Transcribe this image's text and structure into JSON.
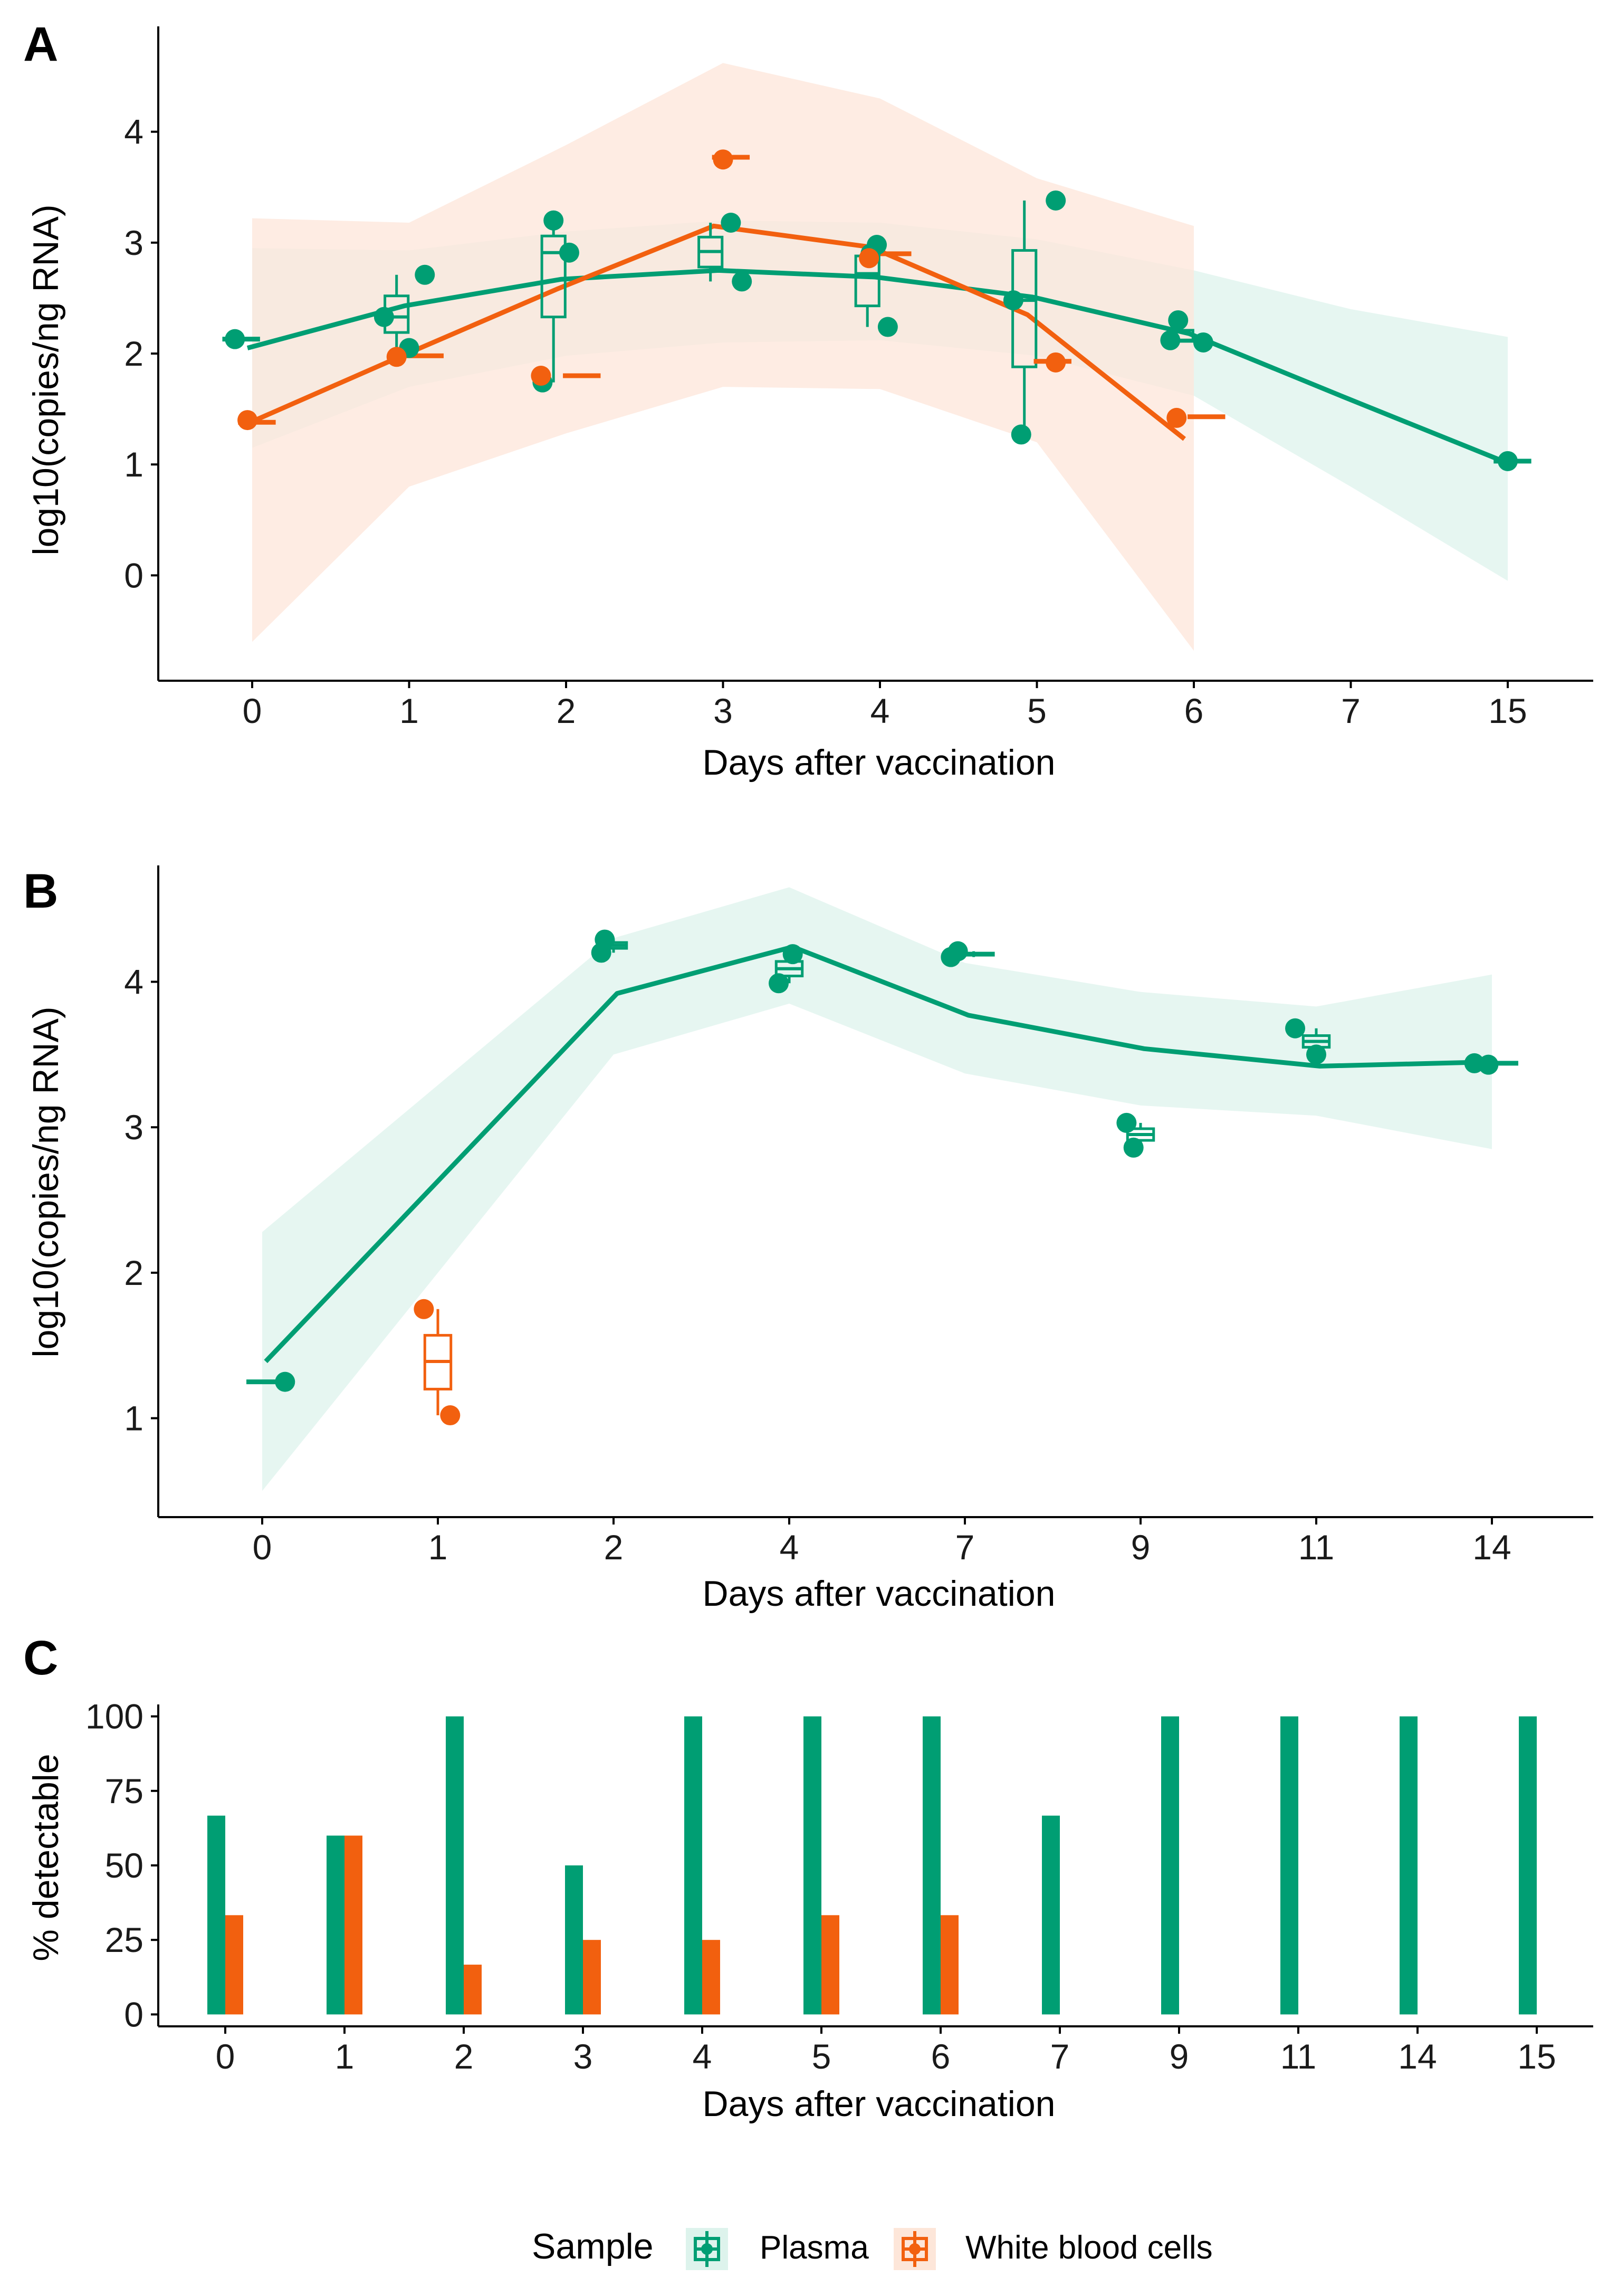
{
  "colors": {
    "plasma": "#009E73",
    "wbc": "#F2600F",
    "plasma_band": "#DDF3EC",
    "wbc_band": "#FDE6D9",
    "axis": "#000000"
  },
  "legend": {
    "title": "Sample",
    "items": [
      {
        "label": "Plasma",
        "key": "plasma"
      },
      {
        "label": "White blood cells",
        "key": "wbc"
      }
    ]
  },
  "chart_data": [
    {
      "panel": "A",
      "type": "line",
      "xlabel": "Days after vaccination",
      "ylabel": "log10(copies/ng RNA)",
      "ylim": [
        -0.95,
        4.95
      ],
      "yticks": [
        0,
        1,
        2,
        3,
        4
      ],
      "categories": [
        "0",
        "1",
        "2",
        "3",
        "4",
        "5",
        "6",
        "7",
        "15"
      ],
      "series": [
        {
          "name": "Plasma",
          "key": "plasma",
          "line": [
            2.05,
            2.43,
            2.67,
            2.75,
            2.69,
            2.51,
            2.18,
            1.6,
            1.03
          ],
          "band_low": [
            1.15,
            1.7,
            1.98,
            2.1,
            2.12,
            1.98,
            1.62,
            0.8,
            -0.05
          ],
          "band_high": [
            2.95,
            2.93,
            3.1,
            3.2,
            3.18,
            3.03,
            2.75,
            2.4,
            2.15
          ],
          "line_x_offset": -0.03,
          "band_x_offset": 0,
          "points": [
            {
              "x": 0,
              "dx": -0.11,
              "y": 2.13
            },
            {
              "x": 1,
              "dx": -0.16,
              "y": 2.33
            },
            {
              "x": 1,
              "dx": 0.0,
              "y": 2.05
            },
            {
              "x": 1,
              "dx": 0.1,
              "y": 2.71
            },
            {
              "x": 2,
              "dx": -0.15,
              "y": 1.74
            },
            {
              "x": 2,
              "dx": -0.08,
              "y": 3.2
            },
            {
              "x": 2,
              "dx": 0.02,
              "y": 2.91
            },
            {
              "x": 3,
              "dx": 0.05,
              "y": 3.18
            },
            {
              "x": 3,
              "dx": 0.12,
              "y": 2.65
            },
            {
              "x": 4,
              "dx": -0.02,
              "y": 2.98
            },
            {
              "x": 4,
              "dx": -0.06,
              "y": 2.9
            },
            {
              "x": 4,
              "dx": 0.05,
              "y": 2.24
            },
            {
              "x": 5,
              "dx": -0.15,
              "y": 2.48
            },
            {
              "x": 5,
              "dx": -0.1,
              "y": 1.27
            },
            {
              "x": 5,
              "dx": 0.12,
              "y": 3.38
            },
            {
              "x": 6,
              "dx": -0.15,
              "y": 2.12
            },
            {
              "x": 6,
              "dx": -0.1,
              "y": 2.3
            },
            {
              "x": 6,
              "dx": 0.06,
              "y": 2.1
            },
            {
              "x": 15,
              "dx": 0.0,
              "y": 1.03
            }
          ],
          "boxes": [
            {
              "x": 0,
              "offset": -0.07,
              "q1": 2.13,
              "median": 2.13,
              "q3": 2.13,
              "lo": 2.13,
              "hi": 2.13
            },
            {
              "x": 1,
              "offset": -0.08,
              "q1": 2.19,
              "median": 2.33,
              "q3": 2.52,
              "lo": 2.05,
              "hi": 2.71
            },
            {
              "x": 2,
              "offset": -0.08,
              "q1": 2.33,
              "median": 2.91,
              "q3": 3.06,
              "lo": 1.74,
              "hi": 3.2
            },
            {
              "x": 3,
              "offset": -0.08,
              "q1": 2.78,
              "median": 2.92,
              "q3": 3.05,
              "lo": 2.65,
              "hi": 3.18
            },
            {
              "x": 4,
              "offset": -0.08,
              "q1": 2.43,
              "median": 2.72,
              "q3": 2.88,
              "lo": 2.24,
              "hi": 2.98
            },
            {
              "x": 5,
              "offset": -0.08,
              "q1": 1.88,
              "median": 2.48,
              "q3": 2.93,
              "lo": 1.27,
              "hi": 3.38
            },
            {
              "x": 6,
              "offset": -0.08,
              "q1": 2.11,
              "median": 2.12,
              "q3": 2.21,
              "lo": 2.1,
              "hi": 2.3
            },
            {
              "x": 15,
              "offset": 0.03,
              "q1": 1.03,
              "median": 1.03,
              "q3": 1.03,
              "lo": 1.03,
              "hi": 1.03
            }
          ]
        },
        {
          "name": "White blood cells",
          "key": "wbc",
          "line": [
            1.35,
            1.97,
            2.58,
            3.15,
            2.96,
            2.35,
            1.23
          ],
          "band_low": [
            -0.6,
            0.8,
            1.28,
            1.7,
            1.68,
            1.2,
            -0.68
          ],
          "band_high": [
            3.22,
            3.18,
            3.88,
            4.62,
            4.3,
            3.58,
            3.15
          ],
          "line_x_offset": -0.06,
          "band_x_offset": 0,
          "points": [
            {
              "x": 0,
              "dx": -0.03,
              "y": 1.4
            },
            {
              "x": 1,
              "dx": -0.08,
              "y": 1.97
            },
            {
              "x": 2,
              "dx": -0.16,
              "y": 1.8
            },
            {
              "x": 3,
              "dx": 0.0,
              "y": 3.75
            },
            {
              "x": 4,
              "dx": -0.07,
              "y": 2.86
            },
            {
              "x": 5,
              "dx": 0.12,
              "y": 1.92
            },
            {
              "x": 6,
              "dx": -0.11,
              "y": 1.42
            }
          ],
          "boxes": [
            {
              "x": 0,
              "offset": 0.03,
              "q1": 1.38,
              "median": 1.38,
              "q3": 1.38,
              "lo": 1.38,
              "hi": 1.38
            },
            {
              "x": 1,
              "offset": 0.1,
              "q1": 1.98,
              "median": 1.98,
              "q3": 1.98,
              "lo": 1.98,
              "hi": 1.98
            },
            {
              "x": 2,
              "offset": 0.1,
              "q1": 1.8,
              "median": 1.8,
              "q3": 1.8,
              "lo": 1.8,
              "hi": 1.8
            },
            {
              "x": 3,
              "offset": 0.05,
              "q1": 3.77,
              "median": 3.77,
              "q3": 3.77,
              "lo": 3.77,
              "hi": 3.77
            },
            {
              "x": 4,
              "offset": 0.08,
              "q1": 2.9,
              "median": 2.9,
              "q3": 2.9,
              "lo": 2.9,
              "hi": 2.9
            },
            {
              "x": 5,
              "offset": 0.1,
              "q1": 1.93,
              "median": 1.93,
              "q3": 1.93,
              "lo": 1.93,
              "hi": 1.93
            },
            {
              "x": 6,
              "offset": 0.08,
              "q1": 1.43,
              "median": 1.43,
              "q3": 1.43,
              "lo": 1.43,
              "hi": 1.43
            }
          ]
        }
      ]
    },
    {
      "panel": "B",
      "type": "line",
      "xlabel": "Days after vaccination",
      "ylabel": "log10(copies/ng RNA)",
      "ylim": [
        0.32,
        4.8
      ],
      "yticks": [
        1,
        2,
        3,
        4
      ],
      "categories": [
        "0",
        "1",
        "2",
        "4",
        "7",
        "9",
        "11",
        "14"
      ],
      "series": [
        {
          "name": "Plasma",
          "key": "plasma",
          "line": [
            1.39,
            null,
            3.92,
            4.24,
            3.77,
            3.54,
            3.42,
            3.45
          ],
          "band_low": [
            0.5,
            null,
            3.5,
            3.85,
            3.37,
            3.15,
            3.08,
            2.85
          ],
          "band_high": [
            2.28,
            null,
            4.3,
            4.65,
            4.13,
            3.93,
            3.83,
            4.05
          ],
          "line_x_offset": 0.02,
          "band_x_offset": 0,
          "points": [
            {
              "x": 0,
              "dx": 0.13,
              "y": 1.25
            },
            {
              "x": 2,
              "dx": -0.07,
              "y": 4.2
            },
            {
              "x": 2,
              "dx": -0.05,
              "y": 4.29
            },
            {
              "x": 4,
              "dx": -0.06,
              "y": 3.99
            },
            {
              "x": 4,
              "dx": 0.02,
              "y": 4.19
            },
            {
              "x": 7,
              "dx": -0.08,
              "y": 4.17
            },
            {
              "x": 7,
              "dx": -0.04,
              "y": 4.21
            },
            {
              "x": 9,
              "dx": -0.08,
              "y": 3.03
            },
            {
              "x": 9,
              "dx": -0.04,
              "y": 2.86
            },
            {
              "x": 11,
              "dx": -0.12,
              "y": 3.68
            },
            {
              "x": 11,
              "dx": 0.0,
              "y": 3.5
            },
            {
              "x": 14,
              "dx": -0.1,
              "y": 3.44
            },
            {
              "x": 14,
              "dx": -0.02,
              "y": 3.43
            }
          ],
          "boxes": [
            {
              "x": 0,
              "offset": 0.03,
              "q1": 1.25,
              "median": 1.25,
              "q3": 1.25,
              "lo": 1.25,
              "hi": 1.25
            },
            {
              "x": 2,
              "offset": 0.0,
              "q1": 4.23,
              "median": 4.25,
              "q3": 4.27,
              "lo": 4.2,
              "hi": 4.29
            },
            {
              "x": 4,
              "offset": 0.0,
              "q1": 4.04,
              "median": 4.09,
              "q3": 4.14,
              "lo": 3.99,
              "hi": 4.19
            },
            {
              "x": 7,
              "offset": 0.05,
              "q1": 4.19,
              "median": 4.19,
              "q3": 4.19,
              "lo": 4.17,
              "hi": 4.21
            },
            {
              "x": 9,
              "offset": 0.0,
              "q1": 2.91,
              "median": 2.95,
              "q3": 2.99,
              "lo": 2.86,
              "hi": 3.03
            },
            {
              "x": 11,
              "offset": 0.0,
              "q1": 3.55,
              "median": 3.59,
              "q3": 3.63,
              "lo": 3.5,
              "hi": 3.68
            },
            {
              "x": 14,
              "offset": 0.03,
              "q1": 3.44,
              "median": 3.44,
              "q3": 3.44,
              "lo": 3.43,
              "hi": 3.45
            }
          ]
        },
        {
          "name": "White blood cells",
          "key": "wbc",
          "line": [],
          "band_low": [],
          "band_high": [],
          "points": [
            {
              "x": 1,
              "dx": -0.08,
              "y": 1.75
            },
            {
              "x": 1,
              "dx": 0.07,
              "y": 1.02
            }
          ],
          "boxes": [
            {
              "x": 1,
              "offset": 0.0,
              "q1": 1.2,
              "median": 1.39,
              "q3": 1.57,
              "lo": 1.02,
              "hi": 1.75
            }
          ]
        }
      ]
    },
    {
      "panel": "C",
      "type": "bar",
      "xlabel": "Days after vaccination",
      "ylabel": "% detectable",
      "ylim": [
        -4,
        104
      ],
      "yticks": [
        0,
        25,
        50,
        75,
        100
      ],
      "categories": [
        "0",
        "1",
        "2",
        "3",
        "4",
        "5",
        "6",
        "7",
        "9",
        "11",
        "14",
        "15"
      ],
      "series": [
        {
          "name": "Plasma",
          "key": "plasma",
          "values": [
            66.7,
            60,
            100,
            50,
            100,
            100,
            100,
            66.7,
            100,
            100,
            100,
            100
          ]
        },
        {
          "name": "White blood cells",
          "key": "wbc",
          "values": [
            33.3,
            60,
            16.7,
            25,
            25,
            33.3,
            33.3,
            0,
            0,
            0,
            0,
            0
          ]
        }
      ]
    }
  ]
}
